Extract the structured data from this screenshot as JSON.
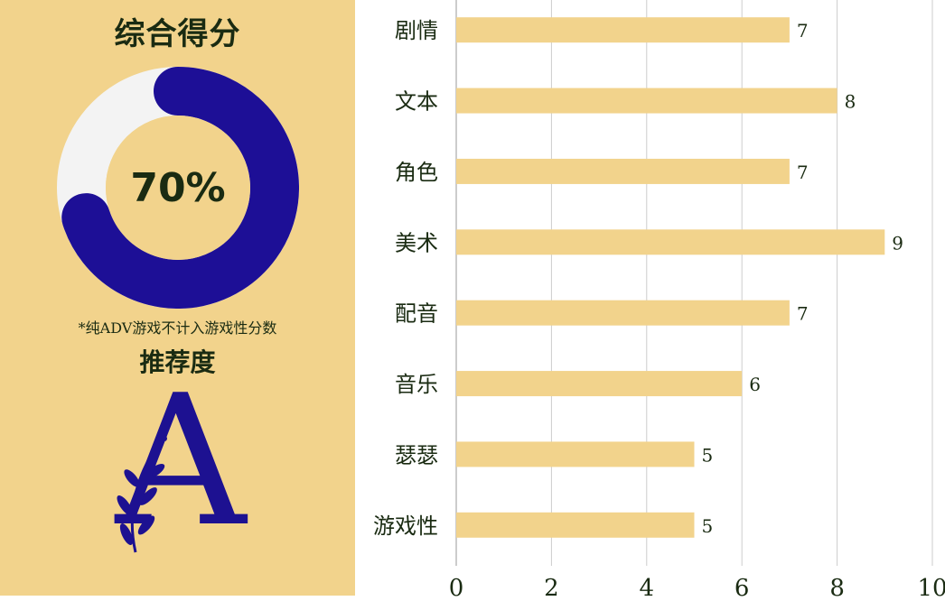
{
  "left_panel": {
    "score_title": "综合得分",
    "score_value": 70,
    "score_label": "70%",
    "note": "*纯ADV游戏不计入游戏性分数",
    "recommend_title": "推荐度",
    "grade": "A",
    "colors": {
      "panel_bg": "#f2d38c",
      "ring_track": "#f3f3f3",
      "ring_fill": "#1d0f96",
      "grade_color": "#1d1191",
      "text": "#1a2b12"
    }
  },
  "chart_data": {
    "type": "bar",
    "orientation": "horizontal",
    "categories": [
      "剧情",
      "文本",
      "角色",
      "美术",
      "配音",
      "音乐",
      "瑟瑟",
      "游戏性"
    ],
    "values": [
      7,
      8,
      7,
      9,
      7,
      6,
      5,
      5
    ],
    "xlim": [
      0,
      10
    ],
    "xticks": [
      0,
      2,
      4,
      6,
      8,
      10
    ],
    "grid": true,
    "data_labels": true,
    "colors": {
      "bar": "#f2d38c",
      "grid": "#cccccc",
      "text": "#1a2b12"
    }
  }
}
